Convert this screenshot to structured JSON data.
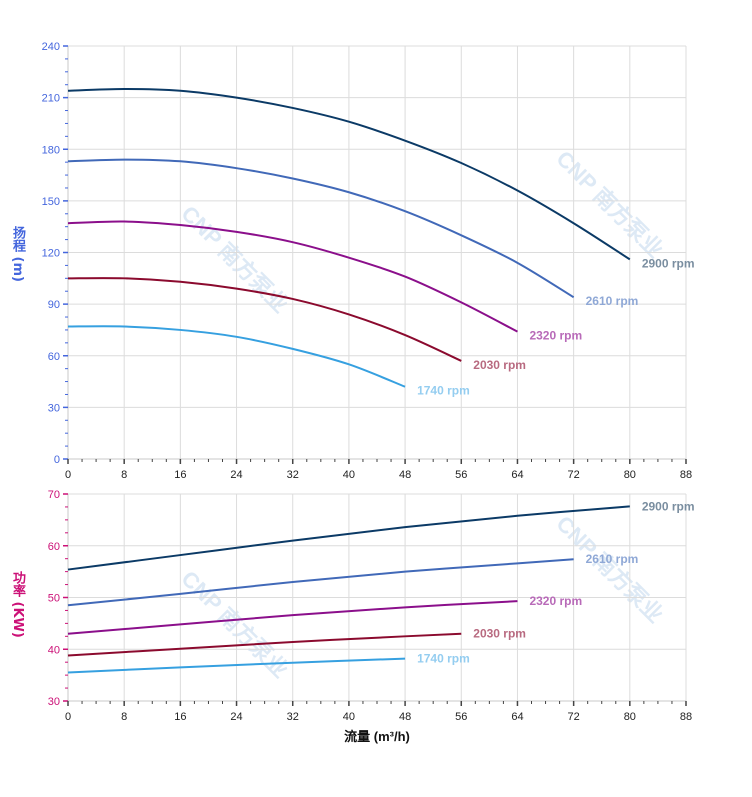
{
  "watermark": "CNP 南方泵业",
  "chart_data": [
    {
      "type": "line",
      "ylabel": "扬程 (m)",
      "ylabel_color": "#4466dd",
      "xlim": [
        0,
        88
      ],
      "ylim": [
        0,
        240
      ],
      "x_ticks": [
        0,
        8,
        16,
        24,
        32,
        40,
        48,
        56,
        64,
        72,
        80,
        88
      ],
      "y_ticks": [
        0,
        30,
        60,
        90,
        120,
        150,
        180,
        210,
        240
      ],
      "grid": true,
      "series": [
        {
          "name": "2900 rpm",
          "color": "#0b3a66",
          "label_color": "#7a8ea0",
          "x": [
            0,
            8,
            16,
            24,
            32,
            40,
            48,
            56,
            64,
            72,
            80
          ],
          "y": [
            214,
            215,
            214,
            210,
            204,
            196,
            185,
            172,
            156,
            137,
            116
          ]
        },
        {
          "name": "2610 rpm",
          "color": "#4169b8",
          "label_color": "#8fa8d6",
          "x": [
            0,
            8,
            16,
            24,
            32,
            40,
            48,
            56,
            64,
            72
          ],
          "y": [
            173,
            174,
            173,
            169,
            163,
            155,
            144,
            130,
            114,
            94
          ]
        },
        {
          "name": "2320 rpm",
          "color": "#8b0f8b",
          "label_color": "#b86ab8",
          "x": [
            0,
            8,
            16,
            24,
            32,
            40,
            48,
            56,
            64
          ],
          "y": [
            137,
            138,
            136,
            132,
            126,
            117,
            106,
            91,
            74
          ]
        },
        {
          "name": "2030 rpm",
          "color": "#8b0a2e",
          "label_color": "#b86a80",
          "x": [
            0,
            8,
            16,
            24,
            32,
            40,
            48,
            56
          ],
          "y": [
            105,
            105,
            103,
            99,
            93,
            84,
            72,
            57
          ]
        },
        {
          "name": "1740 rpm",
          "color": "#36a0e0",
          "label_color": "#94cdf0",
          "x": [
            0,
            8,
            16,
            24,
            32,
            40,
            48
          ],
          "y": [
            77,
            77,
            75,
            71,
            64,
            55,
            42
          ]
        }
      ]
    },
    {
      "type": "line",
      "xlabel": "流量 (m³/h)",
      "ylabel": "功率 (KW)",
      "ylabel_color": "#cc1177",
      "xlim": [
        0,
        88
      ],
      "ylim": [
        30,
        70
      ],
      "x_ticks": [
        0,
        8,
        16,
        24,
        32,
        40,
        48,
        56,
        64,
        72,
        80,
        88
      ],
      "y_ticks": [
        30,
        40,
        50,
        60,
        70
      ],
      "grid": true,
      "series": [
        {
          "name": "2900 rpm",
          "color": "#0b3a66",
          "label_color": "#7a8ea0",
          "x": [
            0,
            16,
            32,
            48,
            64,
            80
          ],
          "y": [
            55.4,
            58.2,
            61.0,
            63.6,
            65.8,
            67.6
          ]
        },
        {
          "name": "2610 rpm",
          "color": "#4169b8",
          "label_color": "#8fa8d6",
          "x": [
            0,
            16,
            32,
            48,
            64,
            72
          ],
          "y": [
            48.5,
            50.7,
            53.0,
            55.0,
            56.6,
            57.4
          ]
        },
        {
          "name": "2320 rpm",
          "color": "#8b0f8b",
          "label_color": "#b86ab8",
          "x": [
            0,
            16,
            32,
            48,
            64
          ],
          "y": [
            43.0,
            44.8,
            46.6,
            48.1,
            49.3
          ]
        },
        {
          "name": "2030 rpm",
          "color": "#8b0a2e",
          "label_color": "#b86a80",
          "x": [
            0,
            16,
            32,
            48,
            56
          ],
          "y": [
            38.8,
            40.1,
            41.4,
            42.5,
            43.0
          ]
        },
        {
          "name": "1740 rpm",
          "color": "#36a0e0",
          "label_color": "#94cdf0",
          "x": [
            0,
            16,
            32,
            48
          ],
          "y": [
            35.5,
            36.5,
            37.4,
            38.2
          ]
        }
      ]
    }
  ]
}
